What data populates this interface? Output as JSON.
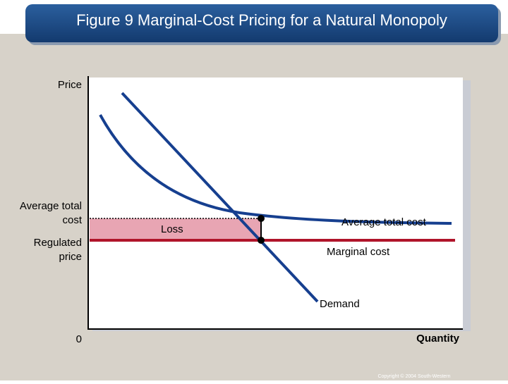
{
  "title": "Figure 9 Marginal-Cost Pricing for a Natural Monopoly",
  "axes": {
    "y_label": "Price",
    "x_label": "Quantity",
    "origin": "0"
  },
  "y_labels": {
    "average_total_cost": [
      "Average total",
      "cost"
    ],
    "regulated_price": [
      "Regulated",
      "price"
    ]
  },
  "curve_labels": {
    "loss": "Loss",
    "average_total_cost": "Average total cost",
    "marginal_cost": "Marginal cost",
    "demand": "Demand"
  },
  "copyright": "Copyright © 2004 South-Western"
}
